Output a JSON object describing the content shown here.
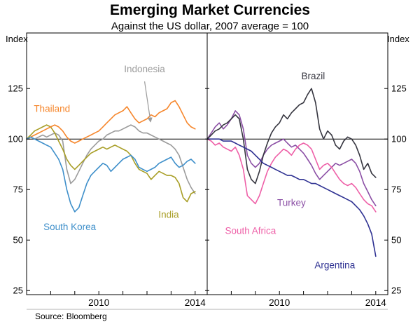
{
  "title": "Emerging Market Currencies",
  "subtitle": "Against the US dollar, 2007 average = 100",
  "source_note": "Source: Bloomberg",
  "axes": {
    "left_unit_label": "Index",
    "right_unit_label": "Index"
  },
  "chart_data": {
    "type": "line",
    "title": "Emerging Market Currencies",
    "subtitle": "Against the US dollar, 2007 average = 100",
    "ylim": [
      23,
      152.5
    ],
    "yticks": [
      25,
      50,
      75,
      100,
      125
    ],
    "reference_line": 100,
    "grid": "off",
    "legend": "inline-labels",
    "x": [
      2007,
      2007.17,
      2007.33,
      2007.5,
      2007.67,
      2007.83,
      2008,
      2008.17,
      2008.33,
      2008.5,
      2008.67,
      2008.83,
      2009,
      2009.17,
      2009.33,
      2009.5,
      2009.67,
      2009.83,
      2010,
      2010.17,
      2010.33,
      2010.5,
      2010.67,
      2010.83,
      2011,
      2011.17,
      2011.33,
      2011.5,
      2011.67,
      2011.83,
      2012,
      2012.17,
      2012.33,
      2012.5,
      2012.67,
      2012.83,
      2013,
      2013.17,
      2013.33,
      2013.5,
      2013.67,
      2013.83,
      2014
    ],
    "panels": [
      {
        "name": "left",
        "x_domain": [
          2007,
          2014.5
        ],
        "xticks": [
          2008,
          2009,
          2010,
          2011,
          2012,
          2013,
          2014
        ],
        "xtick_labels": [
          {
            "value": 2010,
            "text": "2010"
          },
          {
            "value": 2014,
            "text": "2014"
          }
        ],
        "series": [
          {
            "name": "Indonesia",
            "color": "#9b9b9b",
            "values": [
              100,
              101,
              100,
              101,
              102,
              101,
              102,
              103,
              102,
              99,
              85,
              78,
              80,
              84,
              88,
              92,
              95,
              97,
              99,
              100,
              102,
              103,
              104,
              104,
              105,
              106,
              107,
              106,
              104,
              103,
              103,
              102,
              101,
              100,
              99,
              98,
              97,
              95,
              92,
              86,
              80,
              76,
              73
            ],
            "label": {
              "x": 2011.9,
              "y": 133,
              "anchor": "middle"
            },
            "pointer": {
              "from": [
                2011.9,
                128.5
              ],
              "to": [
                2012.15,
                108.5
              ]
            }
          },
          {
            "name": "India",
            "color": "#a89e26",
            "values": [
              100,
              102,
              104,
              105,
              106,
              107,
              106,
              103,
              99,
              95,
              90,
              87,
              85,
              87,
              89,
              91,
              93,
              94,
              95,
              96,
              95,
              96,
              97,
              96,
              95,
              94,
              92,
              88,
              85,
              84,
              83,
              80,
              82,
              84,
              83,
              82,
              82,
              81,
              78,
              71,
              69,
              73,
              74
            ],
            "label": {
              "x": 2012.9,
              "y": 61,
              "anchor": "middle"
            }
          },
          {
            "name": "Thailand",
            "color": "#f6862b",
            "values": [
              100,
              101,
              102,
              103,
              104,
              105,
              106,
              107,
              106,
              104,
              101,
              99,
              98,
              99,
              100,
              101,
              102,
              103,
              104,
              106,
              108,
              110,
              112,
              113,
              114,
              116,
              113,
              110,
              108,
              109,
              110,
              112,
              111,
              113,
              114,
              115,
              118,
              119,
              116,
              112,
              108,
              106,
              105
            ],
            "label": {
              "x": 2007.3,
              "y": 113.5,
              "anchor": "start"
            }
          },
          {
            "name": "South Korea",
            "color": "#3e8fca",
            "values": [
              100,
              101,
              100,
              99,
              98,
              97,
              96,
              93,
              90,
              85,
              75,
              68,
              64,
              66,
              72,
              78,
              82,
              84,
              86,
              88,
              87,
              84,
              86,
              88,
              90,
              91,
              92,
              90,
              86,
              85,
              84,
              85,
              86,
              88,
              89,
              90,
              91,
              88,
              86,
              87,
              89,
              90,
              88
            ],
            "label": {
              "x": 2007.7,
              "y": 55,
              "anchor": "start"
            }
          }
        ]
      },
      {
        "name": "right",
        "x_domain": [
          2007,
          2014.5
        ],
        "xticks": [
          2008,
          2009,
          2010,
          2011,
          2012,
          2013,
          2014
        ],
        "xtick_labels": [
          {
            "value": 2010,
            "text": "2010"
          },
          {
            "value": 2014,
            "text": "2014"
          }
        ],
        "series": [
          {
            "name": "Turkey",
            "color": "#8b4fa5",
            "values": [
              100,
              103,
              106,
              108,
              105,
              107,
              110,
              114,
              112,
              105,
              92,
              88,
              86,
              88,
              92,
              95,
              97,
              98,
              99,
              100,
              98,
              96,
              97,
              95,
              93,
              90,
              87,
              83,
              80,
              82,
              84,
              86,
              88,
              87,
              88,
              89,
              90,
              88,
              84,
              78,
              74,
              70,
              67
            ],
            "label": {
              "x": 2010.5,
              "y": 67,
              "anchor": "middle"
            }
          },
          {
            "name": "South Africa",
            "color": "#ee5fa7",
            "values": [
              100,
              99,
              97,
              98,
              96,
              95,
              94,
              96,
              92,
              85,
              72,
              70,
              68,
              72,
              78,
              84,
              88,
              91,
              93,
              95,
              94,
              92,
              95,
              97,
              98,
              97,
              95,
              90,
              85,
              87,
              88,
              86,
              83,
              80,
              78,
              77,
              78,
              76,
              73,
              70,
              68,
              67,
              64
            ],
            "label": {
              "x": 2008.8,
              "y": 53,
              "anchor": "middle"
            }
          },
          {
            "name": "Brazil",
            "color": "#35353f",
            "values": [
              100,
              102,
              104,
              105,
              107,
              108,
              110,
              112,
              110,
              100,
              85,
              80,
              78,
              84,
              92,
              98,
              103,
              106,
              108,
              112,
              110,
              113,
              115,
              117,
              118,
              122,
              125,
              118,
              105,
              100,
              104,
              102,
              97,
              95,
              99,
              101,
              100,
              97,
              92,
              85,
              88,
              83,
              81
            ],
            "label": {
              "x": 2011.4,
              "y": 129.5,
              "anchor": "middle"
            }
          },
          {
            "name": "Argentina",
            "color": "#2e3192",
            "values": [
              100,
              100,
              100,
              100,
              99,
              99,
              99,
              98,
              97,
              96,
              95,
              94,
              92,
              90,
              88,
              87,
              86,
              85,
              84,
              83,
              82,
              82,
              81,
              80,
              80,
              79,
              78,
              78,
              77,
              76,
              75,
              74,
              73,
              72,
              71,
              70,
              69,
              67,
              65,
              62,
              58,
              53,
              42
            ],
            "label": {
              "x": 2012.3,
              "y": 36,
              "anchor": "middle"
            }
          }
        ]
      }
    ]
  }
}
